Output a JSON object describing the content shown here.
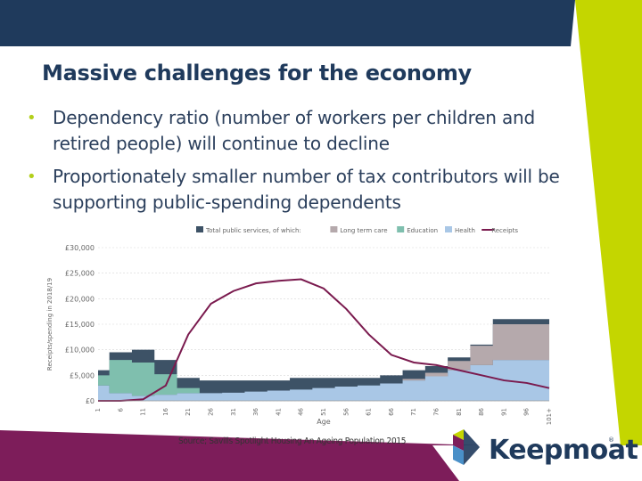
{
  "slide": {
    "title": "Massive challenges for the economy",
    "bullets": [
      "Dependency ratio (number of workers per children and retired people) will continue to decline",
      "Proportionately smaller number of tax contributors will be supporting public-spending dependents"
    ],
    "bullet_glyph": "•",
    "source": "Source; Savills Spotlight Housing An Ageing Population 2015",
    "logo": {
      "text": "Keepmoat",
      "mark": "®",
      "icon": "keepmoat-arrow-logo"
    },
    "colors": {
      "navy": "#1f3a5c",
      "lime": "#c4d600",
      "magenta": "#7d1d5a"
    }
  },
  "chart_data": {
    "type": "area",
    "ylabel": "Receipts/spending in 2018/19",
    "xlabel": "Age",
    "ylim": [
      0,
      30000
    ],
    "yticks": [
      "£0",
      "£5,000",
      "£10,000",
      "£15,000",
      "£20,000",
      "£25,000",
      "£30,000"
    ],
    "xticks": [
      "1",
      "6",
      "11",
      "16",
      "21",
      "26",
      "31",
      "36",
      "41",
      "46",
      "51",
      "56",
      "61",
      "66",
      "71",
      "76",
      "81",
      "86",
      "91",
      "96",
      "101+"
    ],
    "legend": [
      {
        "name": "Total public services, of which:",
        "color": "#3d5266"
      },
      {
        "name": "Long term care",
        "color": "#b5a9ac"
      },
      {
        "name": "Education",
        "color": "#7fbfae"
      },
      {
        "name": "Health",
        "color": "#a9c7e6"
      },
      {
        "name": "Receipts",
        "color": "#7a1a4e"
      }
    ],
    "ages": [
      1,
      6,
      11,
      16,
      21,
      26,
      31,
      36,
      41,
      46,
      51,
      56,
      61,
      66,
      71,
      76,
      81,
      86,
      91,
      96,
      101
    ],
    "series": [
      {
        "name": "Total public services, of which:",
        "values": [
          6000,
          9500,
          10000,
          8000,
          4500,
          4000,
          4000,
          4000,
          4000,
          4500,
          4500,
          4500,
          4500,
          5000,
          6000,
          6800,
          8500,
          11000,
          16000,
          16000,
          16000
        ]
      },
      {
        "name": "Long term care",
        "values": [
          0,
          0,
          0,
          0,
          0,
          0,
          0,
          0,
          0,
          0,
          0,
          0,
          0,
          0,
          300,
          700,
          1800,
          3800,
          7000,
          7000,
          7000
        ]
      },
      {
        "name": "Education",
        "values": [
          2000,
          6500,
          6500,
          4000,
          1000,
          0,
          0,
          0,
          0,
          0,
          0,
          0,
          0,
          0,
          0,
          0,
          0,
          0,
          0,
          0,
          0
        ]
      },
      {
        "name": "Health",
        "values": [
          3000,
          1500,
          1000,
          1200,
          1500,
          1500,
          1600,
          1800,
          2000,
          2200,
          2500,
          2800,
          3000,
          3400,
          4000,
          4800,
          6000,
          7000,
          8000,
          8000,
          8000
        ]
      },
      {
        "name": "Receipts",
        "values": [
          0,
          0,
          300,
          3000,
          13000,
          19000,
          21500,
          23000,
          23500,
          23800,
          22000,
          18000,
          13000,
          9000,
          7500,
          7000,
          6000,
          5000,
          4000,
          3500,
          2500
        ]
      }
    ]
  }
}
